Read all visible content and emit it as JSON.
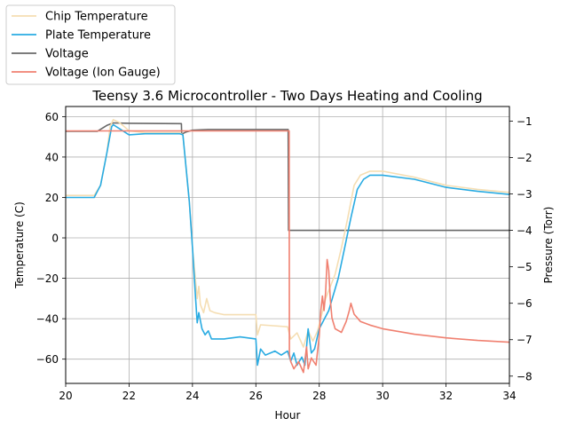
{
  "chart_data": {
    "type": "line",
    "title": "Teensy 3.6 Microcontroller - Two Days Heating and Cooling",
    "xlabel": "Hour",
    "ylabel": "Temperature (C)",
    "y2label": "Pressure (Torr)",
    "xlim": [
      20,
      34
    ],
    "ylim": [
      -72,
      65
    ],
    "y2lim": [
      -8.2,
      -0.6
    ],
    "xticks": [
      20,
      22,
      24,
      26,
      28,
      30,
      32,
      34
    ],
    "yticks": [
      -60,
      -40,
      -20,
      0,
      20,
      40,
      60
    ],
    "y2ticks": [
      -8,
      -7,
      -6,
      -5,
      -4,
      -3,
      -2,
      -1
    ],
    "grid": true,
    "legend_position": "upper-left outside",
    "series": [
      {
        "name": "Chip Temperature",
        "color": "#f5deb3",
        "axis": "left",
        "points": [
          [
            20,
            21
          ],
          [
            20.9,
            21
          ],
          [
            21.1,
            26
          ],
          [
            21.3,
            42
          ],
          [
            21.4,
            55
          ],
          [
            21.5,
            58.5
          ],
          [
            21.7,
            57
          ],
          [
            22,
            53
          ],
          [
            22.5,
            52
          ],
          [
            23.6,
            52
          ],
          [
            23.7,
            51
          ],
          [
            23.9,
            18
          ],
          [
            24.0,
            -5
          ],
          [
            24.15,
            -30
          ],
          [
            24.2,
            -24
          ],
          [
            24.25,
            -33
          ],
          [
            24.35,
            -37
          ],
          [
            24.45,
            -30
          ],
          [
            24.55,
            -36
          ],
          [
            24.7,
            -37
          ],
          [
            25,
            -38
          ],
          [
            26,
            -38
          ],
          [
            26.05,
            -48
          ],
          [
            26.15,
            -43
          ],
          [
            27,
            -44
          ],
          [
            27.1,
            -50
          ],
          [
            27.3,
            -47
          ],
          [
            27.5,
            -54
          ],
          [
            27.65,
            -46
          ],
          [
            27.8,
            -51
          ],
          [
            27.95,
            -46
          ],
          [
            28.2,
            -30
          ],
          [
            28.5,
            -18
          ],
          [
            28.7,
            -5
          ],
          [
            28.9,
            10
          ],
          [
            29.1,
            26
          ],
          [
            29.3,
            31
          ],
          [
            29.6,
            33
          ],
          [
            30,
            33
          ],
          [
            31,
            30
          ],
          [
            32,
            26
          ],
          [
            33,
            24
          ],
          [
            34,
            22.5
          ]
        ]
      },
      {
        "name": "Plate Temperature",
        "color": "#29abe2",
        "axis": "left",
        "points": [
          [
            20,
            20
          ],
          [
            20.9,
            20
          ],
          [
            21.1,
            26
          ],
          [
            21.3,
            42
          ],
          [
            21.45,
            55
          ],
          [
            21.5,
            56
          ],
          [
            21.7,
            54
          ],
          [
            22,
            51
          ],
          [
            22.5,
            51.5
          ],
          [
            23.6,
            51.5
          ],
          [
            23.7,
            51
          ],
          [
            23.9,
            18
          ],
          [
            24.0,
            -5
          ],
          [
            24.1,
            -30
          ],
          [
            24.15,
            -42
          ],
          [
            24.2,
            -37
          ],
          [
            24.3,
            -45
          ],
          [
            24.4,
            -48
          ],
          [
            24.5,
            -46
          ],
          [
            24.6,
            -50
          ],
          [
            25,
            -50
          ],
          [
            25.5,
            -49
          ],
          [
            26,
            -50
          ],
          [
            26.05,
            -63
          ],
          [
            26.15,
            -55
          ],
          [
            26.3,
            -58
          ],
          [
            26.6,
            -56
          ],
          [
            26.8,
            -58
          ],
          [
            27,
            -56
          ],
          [
            27.1,
            -61
          ],
          [
            27.2,
            -57
          ],
          [
            27.3,
            -63
          ],
          [
            27.45,
            -59
          ],
          [
            27.55,
            -63
          ],
          [
            27.65,
            -45
          ],
          [
            27.75,
            -57
          ],
          [
            27.85,
            -55
          ],
          [
            28.0,
            -45
          ],
          [
            28.3,
            -36
          ],
          [
            28.6,
            -20
          ],
          [
            28.8,
            -5
          ],
          [
            29.0,
            10
          ],
          [
            29.2,
            24
          ],
          [
            29.4,
            29
          ],
          [
            29.6,
            31
          ],
          [
            30,
            31
          ],
          [
            31,
            29
          ],
          [
            32,
            25
          ],
          [
            33,
            23
          ],
          [
            34,
            21.5
          ]
        ]
      },
      {
        "name": "Voltage",
        "color": "#696969",
        "axis": "right",
        "points": [
          [
            20,
            -1.28
          ],
          [
            21.0,
            -1.28
          ],
          [
            21.3,
            -1.12
          ],
          [
            21.5,
            -1.05
          ],
          [
            22,
            -1.06
          ],
          [
            23.65,
            -1.07
          ],
          [
            23.66,
            -1.36
          ],
          [
            23.8,
            -1.3
          ],
          [
            24,
            -1.25
          ],
          [
            24.5,
            -1.23
          ],
          [
            27.0,
            -1.23
          ],
          [
            27.02,
            -1.23
          ],
          [
            27.03,
            -4.0
          ],
          [
            34,
            -4.0
          ]
        ]
      },
      {
        "name": "Voltage (Ion Gauge)",
        "color": "#f08070",
        "axis": "right",
        "points": [
          [
            20,
            -1.27
          ],
          [
            27.05,
            -1.27
          ],
          [
            27.06,
            -7.4
          ],
          [
            27.1,
            -7.6
          ],
          [
            27.2,
            -7.8
          ],
          [
            27.35,
            -7.6
          ],
          [
            27.5,
            -7.9
          ],
          [
            27.6,
            -7.2
          ],
          [
            27.65,
            -7.8
          ],
          [
            27.75,
            -7.5
          ],
          [
            27.9,
            -7.7
          ],
          [
            28.0,
            -6.9
          ],
          [
            28.05,
            -6.2
          ],
          [
            28.1,
            -5.8
          ],
          [
            28.15,
            -6.2
          ],
          [
            28.2,
            -5.7
          ],
          [
            28.25,
            -4.8
          ],
          [
            28.3,
            -5.1
          ],
          [
            28.35,
            -5.9
          ],
          [
            28.4,
            -6.4
          ],
          [
            28.5,
            -6.7
          ],
          [
            28.7,
            -6.8
          ],
          [
            28.85,
            -6.5
          ],
          [
            28.95,
            -6.2
          ],
          [
            29.0,
            -6.0
          ],
          [
            29.1,
            -6.3
          ],
          [
            29.3,
            -6.5
          ],
          [
            29.6,
            -6.6
          ],
          [
            30,
            -6.7
          ],
          [
            31,
            -6.85
          ],
          [
            32,
            -6.95
          ],
          [
            33,
            -7.02
          ],
          [
            34,
            -7.07
          ]
        ]
      }
    ]
  }
}
